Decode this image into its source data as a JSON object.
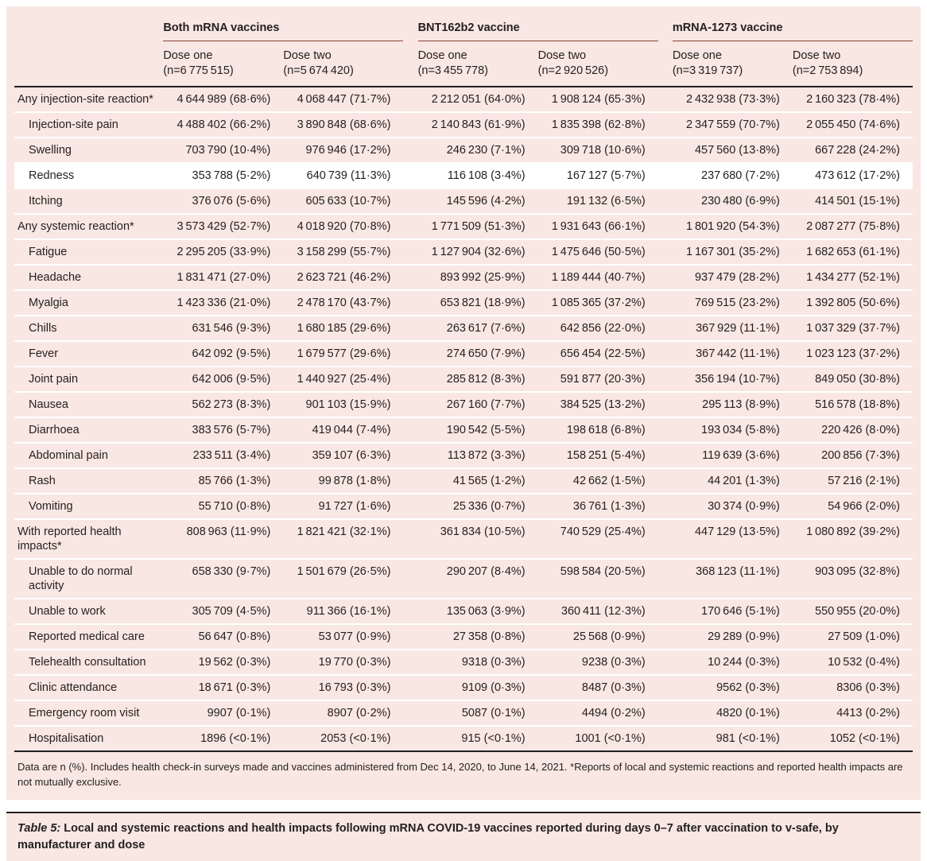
{
  "colors": {
    "table_bg": "#f8e7e2",
    "rule_dark": "#231f20",
    "group_rule": "#8a423a",
    "row_divider": "#ffffff",
    "highlight_row_bg": "#ffffff"
  },
  "table": {
    "type": "table",
    "groups": [
      {
        "label": "Both mRNA vaccines",
        "doses": [
          {
            "label": "Dose one",
            "n": "(n=6 775 515)"
          },
          {
            "label": "Dose two",
            "n": "(n=5 674 420)"
          }
        ]
      },
      {
        "label": "BNT162b2 vaccine",
        "doses": [
          {
            "label": "Dose one",
            "n": "(n=3 455 778)"
          },
          {
            "label": "Dose two",
            "n": "(n=2 920 526)"
          }
        ]
      },
      {
        "label": "mRNA-1273 vaccine",
        "doses": [
          {
            "label": "Dose one",
            "n": "(n=3 319 737)"
          },
          {
            "label": "Dose two",
            "n": "(n=2 753 894)"
          }
        ]
      }
    ],
    "rows": [
      {
        "label": "Any injection-site reaction*",
        "indent": false,
        "values": [
          "4 644 989 (68·6%)",
          "4 068 447 (71·7%)",
          "2 212 051 (64·0%)",
          "1 908 124 (65·3%)",
          "2 432 938 (73·3%)",
          "2 160 323 (78·4%)"
        ]
      },
      {
        "label": "Injection-site pain",
        "indent": true,
        "values": [
          "4 488 402 (66·2%)",
          "3 890 848 (68·6%)",
          "2 140 843 (61·9%)",
          "1 835 398 (62·8%)",
          "2 347 559 (70·7%)",
          "2 055 450 (74·6%)"
        ]
      },
      {
        "label": "Swelling",
        "indent": true,
        "values": [
          "703 790 (10·4%)",
          "976 946 (17·2%)",
          "246 230 (7·1%)",
          "309 718 (10·6%)",
          "457 560 (13·8%)",
          "667 228 (24·2%)"
        ]
      },
      {
        "label": "Redness",
        "indent": true,
        "white_bg": true,
        "values": [
          "353 788 (5·2%)",
          "640 739 (11·3%)",
          "116 108 (3·4%)",
          "167 127 (5·7%)",
          "237 680 (7·2%)",
          "473 612 (17·2%)"
        ]
      },
      {
        "label": "Itching",
        "indent": true,
        "values": [
          "376 076 (5·6%)",
          "605 633 (10·7%)",
          "145 596 (4·2%)",
          "191 132 (6·5%)",
          "230 480 (6·9%)",
          "414 501 (15·1%)"
        ]
      },
      {
        "label": "Any systemic reaction*",
        "indent": false,
        "values": [
          "3 573 429 (52·7%)",
          "4 018 920 (70·8%)",
          "1 771 509 (51·3%)",
          "1 931 643 (66·1%)",
          "1 801 920 (54·3%)",
          "2 087 277 (75·8%)"
        ]
      },
      {
        "label": "Fatigue",
        "indent": true,
        "values": [
          "2 295 205 (33·9%)",
          "3 158 299 (55·7%)",
          "1 127 904 (32·6%)",
          "1 475 646 (50·5%)",
          "1 167 301 (35·2%)",
          "1 682 653 (61·1%)"
        ]
      },
      {
        "label": "Headache",
        "indent": true,
        "values": [
          "1 831 471 (27·0%)",
          "2 623 721 (46·2%)",
          "893 992 (25·9%)",
          "1 189 444 (40·7%)",
          "937 479 (28·2%)",
          "1 434 277 (52·1%)"
        ]
      },
      {
        "label": "Myalgia",
        "indent": true,
        "values": [
          "1 423 336 (21·0%)",
          "2 478 170 (43·7%)",
          "653 821 (18·9%)",
          "1 085 365 (37·2%)",
          "769 515 (23·2%)",
          "1 392 805 (50·6%)"
        ]
      },
      {
        "label": "Chills",
        "indent": true,
        "values": [
          "631 546 (9·3%)",
          "1 680 185 (29·6%)",
          "263 617 (7·6%)",
          "642 856 (22·0%)",
          "367 929 (11·1%)",
          "1 037 329 (37·7%)"
        ]
      },
      {
        "label": "Fever",
        "indent": true,
        "values": [
          "642 092 (9·5%)",
          "1 679 577 (29·6%)",
          "274 650 (7·9%)",
          "656 454 (22·5%)",
          "367 442 (11·1%)",
          "1 023 123 (37·2%)"
        ]
      },
      {
        "label": "Joint pain",
        "indent": true,
        "values": [
          "642 006 (9·5%)",
          "1 440 927 (25·4%)",
          "285 812 (8·3%)",
          "591 877 (20·3%)",
          "356 194 (10·7%)",
          "849 050 (30·8%)"
        ]
      },
      {
        "label": "Nausea",
        "indent": true,
        "values": [
          "562 273 (8·3%)",
          "901 103 (15·9%)",
          "267 160 (7·7%)",
          "384 525 (13·2%)",
          "295 113 (8·9%)",
          "516 578 (18·8%)"
        ]
      },
      {
        "label": "Diarrhoea",
        "indent": true,
        "values": [
          "383 576 (5·7%)",
          "419 044 (7·4%)",
          "190 542 (5·5%)",
          "198 618 (6·8%)",
          "193 034 (5·8%)",
          "220 426 (8·0%)"
        ]
      },
      {
        "label": "Abdominal pain",
        "indent": true,
        "values": [
          "233 511 (3·4%)",
          "359 107 (6·3%)",
          "113 872 (3·3%)",
          "158 251 (5·4%)",
          "119 639 (3·6%)",
          "200 856 (7·3%)"
        ]
      },
      {
        "label": "Rash",
        "indent": true,
        "values": [
          "85 766 (1·3%)",
          "99 878 (1·8%)",
          "41 565 (1·2%)",
          "42 662 (1·5%)",
          "44 201 (1·3%)",
          "57 216 (2·1%)"
        ]
      },
      {
        "label": "Vomiting",
        "indent": true,
        "values": [
          "55 710 (0·8%)",
          "91 727 (1·6%)",
          "25 336 (0·7%)",
          "36 761 (1·3%)",
          "30 374 (0·9%)",
          "54 966 (2·0%)"
        ]
      },
      {
        "label": "With reported health impacts*",
        "indent": false,
        "values": [
          "808 963 (11·9%)",
          "1 821 421 (32·1%)",
          "361 834 (10·5%)",
          "740 529 (25·4%)",
          "447 129 (13·5%)",
          "1 080 892 (39·2%)"
        ]
      },
      {
        "label": "Unable to do normal activity",
        "indent": true,
        "values": [
          "658 330 (9·7%)",
          "1 501 679 (26·5%)",
          "290 207 (8·4%)",
          "598 584 (20·5%)",
          "368 123 (11·1%)",
          "903 095 (32·8%)"
        ]
      },
      {
        "label": "Unable to work",
        "indent": true,
        "values": [
          "305 709 (4·5%)",
          "911 366 (16·1%)",
          "135 063 (3·9%)",
          "360 411 (12·3%)",
          "170 646 (5·1%)",
          "550 955 (20·0%)"
        ]
      },
      {
        "label": "Reported medical care",
        "indent": true,
        "values": [
          "56 647 (0·8%)",
          "53 077 (0·9%)",
          "27 358 (0·8%)",
          "25 568 (0·9%)",
          "29 289 (0·9%)",
          "27 509 (1·0%)"
        ]
      },
      {
        "label": "Telehealth consultation",
        "indent": true,
        "values": [
          "19 562 (0·3%)",
          "19 770 (0·3%)",
          "9318 (0·3%)",
          "9238 (0·3%)",
          "10 244 (0·3%)",
          "10 532 (0·4%)"
        ]
      },
      {
        "label": "Clinic attendance",
        "indent": true,
        "values": [
          "18 671 (0·3%)",
          "16 793 (0·3%)",
          "9109 (0·3%)",
          "8487 (0·3%)",
          "9562 (0·3%)",
          "8306 (0·3%)"
        ]
      },
      {
        "label": "Emergency room visit",
        "indent": true,
        "values": [
          "9907 (0·1%)",
          "8907 (0·2%)",
          "5087 (0·1%)",
          "4494 (0·2%)",
          "4820 (0·1%)",
          "4413 (0·2%)"
        ]
      },
      {
        "label": "Hospitalisation",
        "indent": true,
        "values": [
          "1896 (<0·1%)",
          "2053 (<0·1%)",
          "915 (<0·1%)",
          "1001 (<0·1%)",
          "981 (<0·1%)",
          "1052 (<0·1%)"
        ]
      }
    ]
  },
  "footnote": "Data are n (%). Includes health check-in surveys made and vaccines administered from Dec 14, 2020, to June 14, 2021. *Reports of local and systemic reactions and reported health impacts are not mutually exclusive.",
  "caption": {
    "label": "Table 5:",
    "text": "Local and systemic reactions and health impacts following mRNA COVID-19 vaccines reported during days 0–7 after vaccination to v-safe, by manufacturer and dose"
  }
}
